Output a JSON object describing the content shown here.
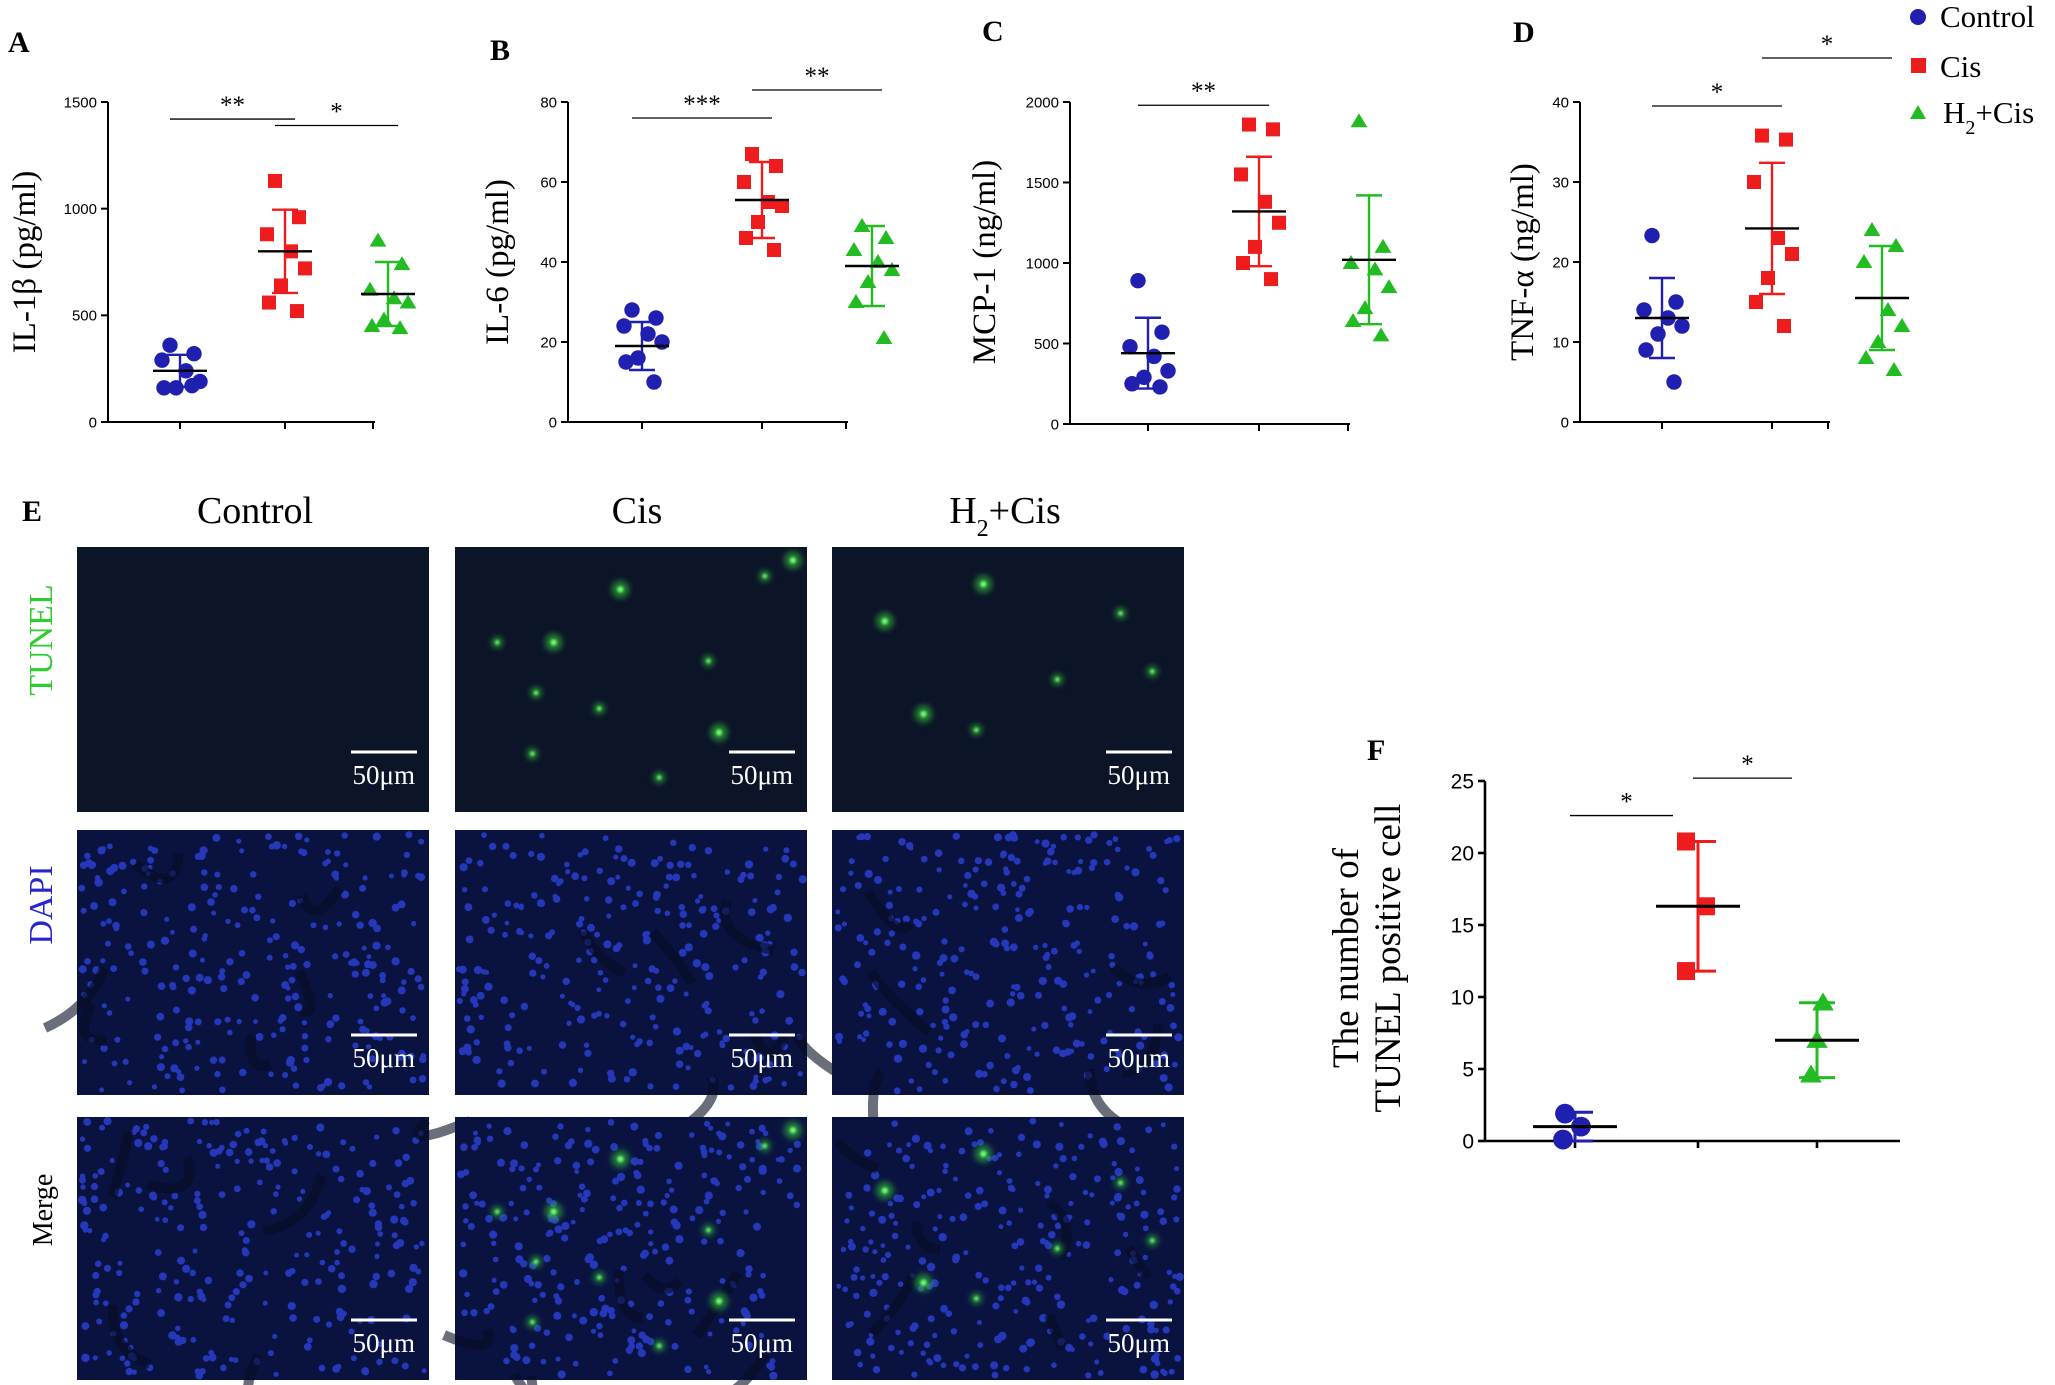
{
  "colors": {
    "control": "#1f1fb0",
    "cis": "#ee1c1c",
    "h2cis": "#22bb22",
    "tunel_label": "#2ecc2e",
    "dapi_label": "#2626cc",
    "micro_bg": "#0b1430",
    "axis": "#000000"
  },
  "legend": {
    "items": [
      {
        "label": "Control",
        "group": "control",
        "marker": "circle"
      },
      {
        "label": "Cis",
        "group": "cis",
        "marker": "square"
      },
      {
        "label_main": "H",
        "label_sub": "2",
        "label_tail": "+Cis",
        "group": "h2cis",
        "marker": "triangle"
      }
    ]
  },
  "microscopy": {
    "panel_letter": "E",
    "columns": [
      {
        "label": "Control"
      },
      {
        "label": "Cis"
      },
      {
        "label_main": "H",
        "label_sub": "2",
        "label_tail": "+Cis"
      }
    ],
    "rows": [
      {
        "label": "TUNEL",
        "stain": "tunel"
      },
      {
        "label": "DAPI",
        "stain": "dapi"
      },
      {
        "label": "Merge",
        "stain": "merge"
      }
    ],
    "scale_bar_label": "50μm"
  },
  "chart_data": [
    {
      "panel": "A",
      "type": "scatter",
      "ylabel": "IL-1β (pg/ml)",
      "ylim": [
        0,
        1500
      ],
      "yticks": [
        0,
        500,
        1000,
        1500
      ],
      "groups": [
        {
          "group": "control",
          "mean": 240,
          "sd": 75,
          "points": [
            360,
            320,
            290,
            240,
            190,
            160,
            160,
            170
          ]
        },
        {
          "group": "cis",
          "mean": 800,
          "sd": 195,
          "points": [
            1130,
            960,
            880,
            800,
            720,
            640,
            560,
            520
          ]
        },
        {
          "group": "h2cis",
          "mean": 600,
          "sd": 150,
          "points": [
            850,
            740,
            620,
            580,
            560,
            480,
            450,
            440
          ]
        }
      ],
      "significance": [
        {
          "from": 0,
          "to": 1,
          "label": "**",
          "y": 1420
        },
        {
          "from": 1,
          "to": 2,
          "label": "*",
          "y": 1390
        }
      ]
    },
    {
      "panel": "B",
      "type": "scatter",
      "ylabel": "IL-6 (pg/ml)",
      "ylim": [
        0,
        80
      ],
      "yticks": [
        0,
        20,
        40,
        60,
        80
      ],
      "groups": [
        {
          "group": "control",
          "mean": 19,
          "sd": 6,
          "points": [
            28,
            26,
            24,
            22,
            20,
            16,
            15,
            10
          ]
        },
        {
          "group": "cis",
          "mean": 55.5,
          "sd": 9.5,
          "points": [
            67,
            64,
            60,
            55,
            54,
            50,
            46,
            43
          ]
        },
        {
          "group": "h2cis",
          "mean": 39,
          "sd": 10,
          "points": [
            49,
            46,
            43,
            40,
            38,
            35,
            30,
            21
          ]
        }
      ],
      "significance": [
        {
          "from": 0,
          "to": 1,
          "label": "***",
          "y": 76
        },
        {
          "from": 1,
          "to": 2,
          "label": "**",
          "y": 83
        }
      ]
    },
    {
      "panel": "C",
      "type": "scatter",
      "ylabel": "MCP-1 (ng/ml)",
      "ylim": [
        0,
        2000
      ],
      "yticks": [
        0,
        500,
        1000,
        1500,
        2000
      ],
      "groups": [
        {
          "group": "control",
          "mean": 440,
          "sd": 220,
          "points": [
            890,
            570,
            480,
            420,
            330,
            290,
            250,
            230
          ]
        },
        {
          "group": "cis",
          "mean": 1320,
          "sd": 340,
          "points": [
            1860,
            1830,
            1550,
            1380,
            1250,
            1100,
            1000,
            900
          ]
        },
        {
          "group": "h2cis",
          "mean": 1020,
          "sd": 400,
          "points": [
            1880,
            1100,
            1000,
            960,
            850,
            720,
            640,
            550
          ]
        }
      ],
      "significance": [
        {
          "from": 0,
          "to": 1,
          "label": "**",
          "y": 1980
        }
      ]
    },
    {
      "panel": "D",
      "type": "scatter",
      "ylabel": "TNF-α (ng/ml)",
      "ylim": [
        0,
        40
      ],
      "yticks": [
        0,
        10,
        20,
        30,
        40
      ],
      "groups": [
        {
          "group": "control",
          "mean": 13,
          "sd": 5,
          "points": [
            23.3,
            15,
            14,
            13,
            12,
            11,
            9,
            5
          ]
        },
        {
          "group": "cis",
          "mean": 24.2,
          "sd": 8.2,
          "points": [
            35.8,
            35.3,
            30,
            23,
            21,
            18,
            15,
            12
          ]
        },
        {
          "group": "h2cis",
          "mean": 15.5,
          "sd": 6.5,
          "points": [
            24,
            22,
            20,
            14,
            12,
            10,
            8,
            6.5
          ]
        }
      ],
      "significance": [
        {
          "from": 0,
          "to": 1,
          "label": "*",
          "y": 39.5
        },
        {
          "from": 1,
          "to": 2,
          "label": "*",
          "y": 45.5
        }
      ]
    },
    {
      "panel": "F",
      "type": "scatter",
      "ylabel_line1": "The number of",
      "ylabel_line2": "TUNEL positive cell",
      "ylim": [
        0,
        25
      ],
      "yticks": [
        0,
        5,
        10,
        15,
        20,
        25
      ],
      "groups": [
        {
          "group": "control",
          "mean": 1,
          "sd": 1,
          "points": [
            1.9,
            1.0,
            0.1
          ]
        },
        {
          "group": "cis",
          "mean": 16.3,
          "sd": 4.5,
          "points": [
            20.8,
            16.3,
            11.8
          ]
        },
        {
          "group": "h2cis",
          "mean": 7,
          "sd": 2.6,
          "points": [
            9.6,
            7.0,
            4.6
          ]
        }
      ],
      "significance": [
        {
          "from": 0,
          "to": 1,
          "label": "*",
          "y": 22.6
        },
        {
          "from": 1,
          "to": 2,
          "label": "*",
          "y": 25.2
        }
      ]
    }
  ]
}
